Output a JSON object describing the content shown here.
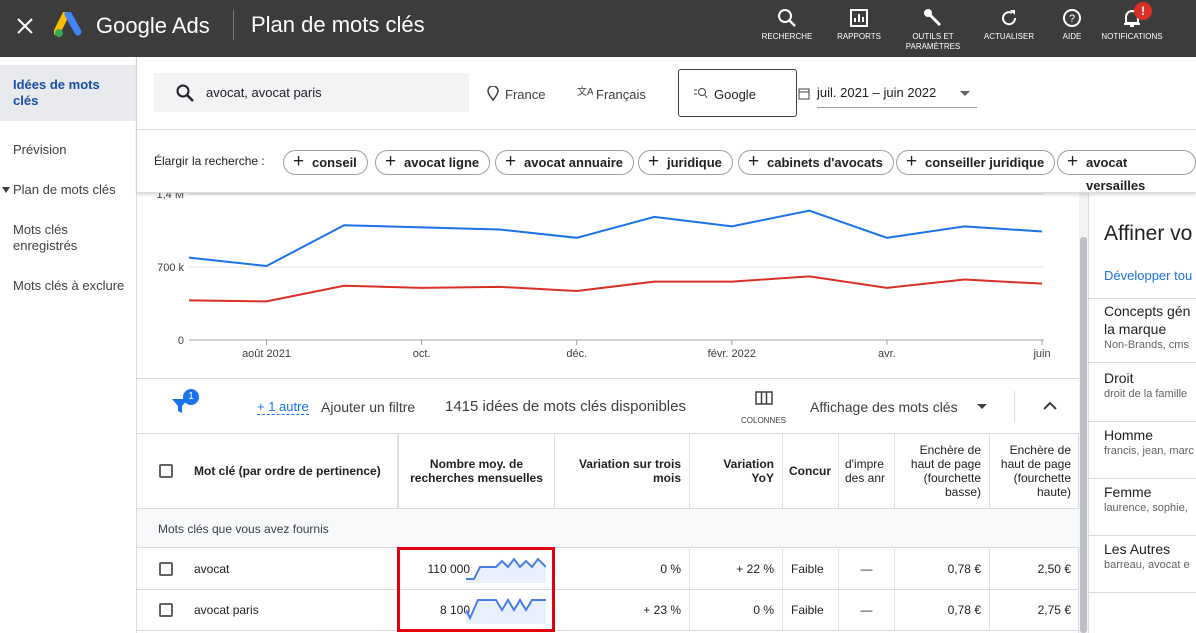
{
  "header": {
    "product": "Google Ads",
    "title": "Plan de mots clés",
    "actions": [
      "RECHERCHE",
      "RAPPORTS",
      "OUTILS ET PARAMÈTRES",
      "ACTUALISER",
      "AIDE",
      "NOTIFICATIONS"
    ],
    "notification_badge": "!"
  },
  "sidebar": {
    "items": [
      "Idées de mots clés",
      "Prévision",
      "Plan de mots clés",
      "Mots clés enregistrés",
      "Mots clés à exclure"
    ]
  },
  "search": {
    "query": "avocat, avocat paris",
    "location": "France",
    "language": "Français",
    "network": "Google",
    "date_range": "juil. 2021 – juin 2022"
  },
  "expand": {
    "label": "Élargir la recherche :",
    "chips": [
      "conseil",
      "avocat ligne",
      "avocat annuaire",
      "juridique",
      "cabinets d'avocats",
      "conseiller juridique",
      "avocat versailles"
    ]
  },
  "chart_data": {
    "type": "line",
    "categories": [
      null,
      "août 2021",
      null,
      "oct.",
      null,
      "déc.",
      null,
      "févr. 2022",
      null,
      "avr.",
      null,
      "juin"
    ],
    "ylim": [
      0,
      1400000
    ],
    "yticks": [
      0,
      {
        "value": 700000,
        "label": "700 k"
      },
      {
        "value": 1400000,
        "label": "1,4 M"
      }
    ],
    "grid": true,
    "series": [
      {
        "color": "#1a73e8",
        "values": [
          790000,
          710000,
          1100000,
          1080000,
          1060000,
          980000,
          1180000,
          1090000,
          1240000,
          980000,
          1090000,
          1040000
        ]
      },
      {
        "color": "#d93025",
        "values": [
          380000,
          370000,
          520000,
          500000,
          510000,
          470000,
          560000,
          560000,
          610000,
          500000,
          580000,
          540000
        ]
      }
    ]
  },
  "toolbar": {
    "filter_badge": "1",
    "more_filters": "+ 1 autre",
    "add_filter": "Ajouter un filtre",
    "count": "1415 idées de mots clés disponibles",
    "columns": "COLONNES",
    "view": "Affichage des mots clés"
  },
  "table": {
    "columns": [
      "Mot clé (par ordre de pertinence)",
      "Nombre moy. de recherches mensuelles",
      "Variation sur trois mois",
      "Variation YoY",
      "Concur",
      "d'impre des anr",
      "Enchère de haut de page (fourchette basse)",
      "Enchère de haut de page (fourchette haute)"
    ],
    "section": "Mots clés que vous avez fournis",
    "rows": [
      [
        "avocat",
        "110 000",
        "0 %",
        "+ 22 %",
        "Faible",
        "—",
        "0,78 €",
        "2,50 €"
      ],
      [
        "avocat paris",
        "8 100",
        "+ 23 %",
        "0 %",
        "Faible",
        "—",
        "0,78 €",
        "2,75 €"
      ]
    ]
  },
  "refine": {
    "title": "Affiner vo",
    "expand": "Développer tou",
    "groups": [
      {
        "name": "Concepts gén la marque",
        "detail": "Non-Brands, cms"
      },
      {
        "name": "Droit",
        "detail": "droit de la famille"
      },
      {
        "name": "Homme",
        "detail": "francis, jean, marc"
      },
      {
        "name": "Femme",
        "detail": "laurence, sophie,"
      },
      {
        "name": "Les Autres",
        "detail": "barreau, avocat e"
      }
    ]
  }
}
